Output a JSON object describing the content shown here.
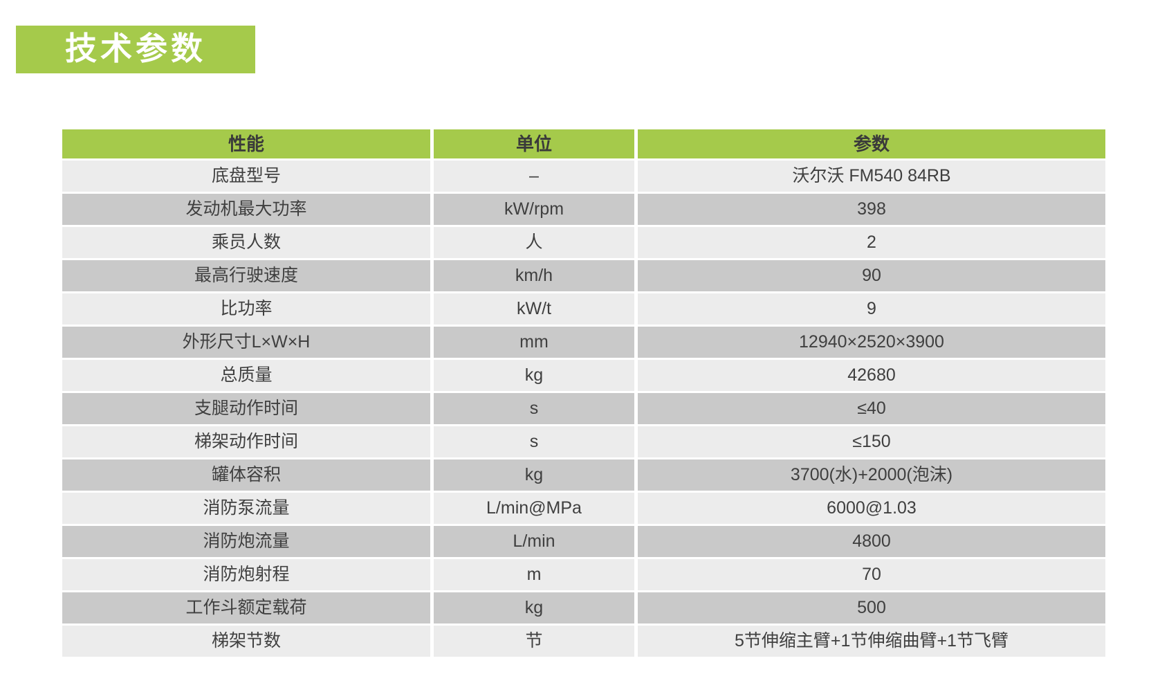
{
  "page_title": "技术参数",
  "colors": {
    "accent_green": "#a5ca4b",
    "row_light": "#ececec",
    "row_dark": "#c9c9c9",
    "text": "#3f3f3f",
    "title_text": "#ffffff"
  },
  "table": {
    "headers": [
      "性能",
      "单位",
      "参数"
    ],
    "rows": [
      {
        "label": "底盘型号",
        "unit": "–",
        "value": "沃尔沃 FM540 84RB"
      },
      {
        "label": "发动机最大功率",
        "unit": "kW/rpm",
        "value": "398"
      },
      {
        "label": "乘员人数",
        "unit": "人",
        "value": "2"
      },
      {
        "label": "最高行驶速度",
        "unit": "km/h",
        "value": "90"
      },
      {
        "label": "比功率",
        "unit": "kW/t",
        "value": "9"
      },
      {
        "label": "外形尺寸L×W×H",
        "unit": "mm",
        "value": "12940×2520×3900"
      },
      {
        "label": "总质量",
        "unit": "kg",
        "value": "42680"
      },
      {
        "label": "支腿动作时间",
        "unit": "s",
        "value": "≤40"
      },
      {
        "label": "梯架动作时间",
        "unit": "s",
        "value": "≤150"
      },
      {
        "label": "罐体容积",
        "unit": "kg",
        "value": "3700(水)+2000(泡沫)"
      },
      {
        "label": "消防泵流量",
        "unit": "L/min@MPa",
        "value": "6000@1.03"
      },
      {
        "label": "消防炮流量",
        "unit": "L/min",
        "value": "4800"
      },
      {
        "label": "消防炮射程",
        "unit": "m",
        "value": "70"
      },
      {
        "label": "工作斗额定载荷",
        "unit": "kg",
        "value": "500"
      },
      {
        "label": "梯架节数",
        "unit": "节",
        "value": "5节伸缩主臂+1节伸缩曲臂+1节飞臂"
      }
    ]
  }
}
